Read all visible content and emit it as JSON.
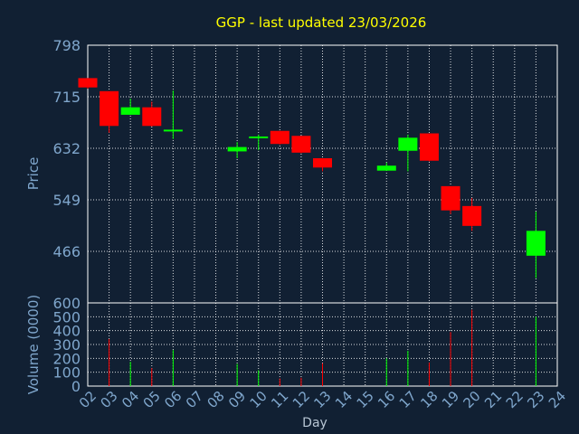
{
  "chart_data": {
    "type": "candlestick",
    "title": "GGP - last updated 23/03/2026",
    "xlabel": "Day",
    "price_label": "Price",
    "volume_label": "Volume (0000)",
    "x_ticks": [
      "02",
      "03",
      "04",
      "05",
      "06",
      "07",
      "08",
      "09",
      "10",
      "11",
      "12",
      "13",
      "14",
      "15",
      "16",
      "17",
      "18",
      "19",
      "20",
      "21",
      "22",
      "23",
      "24"
    ],
    "price_ticks": [
      "798",
      "715",
      "632",
      "549",
      "466"
    ],
    "volume_ticks": [
      "600",
      "500",
      "400",
      "300",
      "200",
      "100",
      "0"
    ],
    "price_range": [
      383,
      798
    ],
    "volume_range": [
      0,
      600
    ],
    "up_color": "#00ff00",
    "down_color": "#ff0000",
    "candles": [
      {
        "day": 2,
        "open": 745,
        "high": 745,
        "low": 728,
        "close": 730
      },
      {
        "day": 3,
        "open": 724,
        "high": 724,
        "low": 657,
        "close": 668
      },
      {
        "day": 4,
        "open": 686,
        "high": 712,
        "low": 686,
        "close": 698
      },
      {
        "day": 5,
        "open": 698,
        "high": 707,
        "low": 667,
        "close": 668
      },
      {
        "day": 6,
        "open": 662,
        "high": 725,
        "low": 647,
        "close": 662
      },
      {
        "day": 9,
        "open": 627,
        "high": 642,
        "low": 616,
        "close": 634
      },
      {
        "day": 10,
        "open": 649,
        "high": 654,
        "low": 629,
        "close": 651
      },
      {
        "day": 11,
        "open": 660,
        "high": 660,
        "low": 638,
        "close": 639
      },
      {
        "day": 12,
        "open": 652,
        "high": 652,
        "low": 624,
        "close": 625
      },
      {
        "day": 13,
        "open": 616,
        "high": 616,
        "low": 595,
        "close": 601
      },
      {
        "day": 16,
        "open": 596,
        "high": 609,
        "low": 596,
        "close": 604
      },
      {
        "day": 17,
        "open": 628,
        "high": 654,
        "low": 595,
        "close": 649
      },
      {
        "day": 18,
        "open": 656,
        "high": 656,
        "low": 611,
        "close": 612
      },
      {
        "day": 19,
        "open": 571,
        "high": 571,
        "low": 526,
        "close": 532
      },
      {
        "day": 20,
        "open": 539,
        "high": 552,
        "low": 499,
        "close": 507
      },
      {
        "day": 23,
        "open": 459,
        "high": 530,
        "low": 423,
        "close": 499
      }
    ],
    "volumes": [
      {
        "day": 3,
        "value": 340,
        "dir": "down"
      },
      {
        "day": 4,
        "value": 175,
        "dir": "up"
      },
      {
        "day": 5,
        "value": 130,
        "dir": "down"
      },
      {
        "day": 6,
        "value": 260,
        "dir": "up"
      },
      {
        "day": 9,
        "value": 160,
        "dir": "up"
      },
      {
        "day": 10,
        "value": 115,
        "dir": "up"
      },
      {
        "day": 11,
        "value": 55,
        "dir": "down"
      },
      {
        "day": 12,
        "value": 60,
        "dir": "down"
      },
      {
        "day": 13,
        "value": 165,
        "dir": "down"
      },
      {
        "day": 16,
        "value": 200,
        "dir": "up"
      },
      {
        "day": 17,
        "value": 255,
        "dir": "up"
      },
      {
        "day": 18,
        "value": 170,
        "dir": "down"
      },
      {
        "day": 19,
        "value": 390,
        "dir": "down"
      },
      {
        "day": 20,
        "value": 550,
        "dir": "down"
      },
      {
        "day": 23,
        "value": 500,
        "dir": "up"
      }
    ],
    "grid": true,
    "legend": "none"
  }
}
